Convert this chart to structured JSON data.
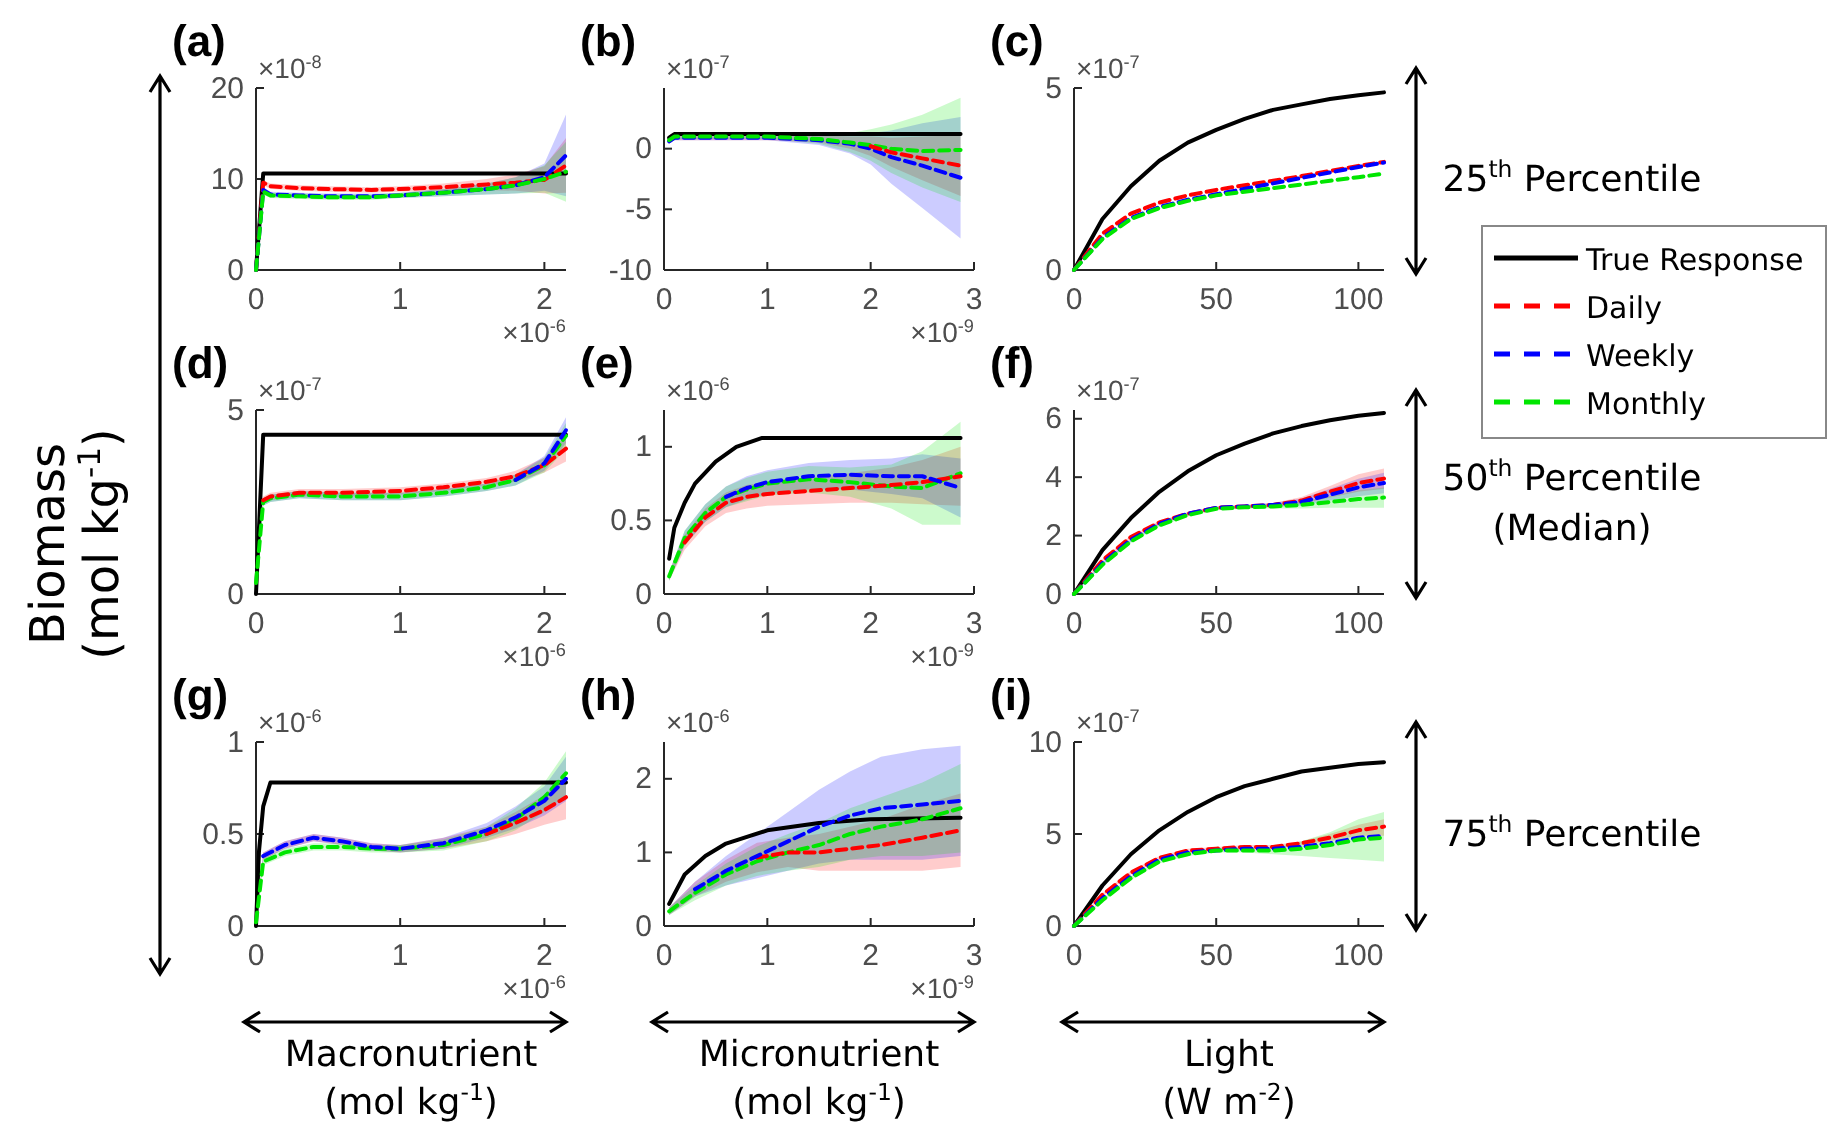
{
  "chart_data": [
    {
      "type": "line",
      "title": "(a)",
      "xlim": [
        0,
        2.15
      ],
      "xticks": [
        0,
        1,
        2
      ],
      "ylim": [
        0,
        20
      ],
      "yticks": [
        0,
        10,
        20
      ],
      "annotations": [
        "×10$^{-8}$",
        "×10$^{-6}$"
      ],
      "x": [
        0,
        0.05,
        0.1,
        0.3,
        0.5,
        0.8,
        1.0,
        1.3,
        1.6,
        1.8,
        2.0,
        2.15
      ],
      "series": [
        {
          "color": "#000000",
          "line_style": "solid",
          "x": [
            0,
            0.05,
            2.15
          ],
          "values": [
            0,
            10.6,
            10.6
          ]
        },
        {
          "color": "#ff0000",
          "line_style": "dashed",
          "values": [
            0,
            9.6,
            9.2,
            9.0,
            8.9,
            8.8,
            8.9,
            9.1,
            9.4,
            9.6,
            9.9,
            11.5
          ],
          "lower": [
            0,
            9.3,
            8.9,
            8.7,
            8.6,
            8.5,
            8.6,
            8.7,
            8.8,
            8.7,
            8.4,
            8.5
          ],
          "upper": [
            0,
            9.9,
            9.5,
            9.3,
            9.2,
            9.1,
            9.2,
            9.5,
            10.0,
            10.5,
            11.4,
            14.5
          ]
        },
        {
          "color": "#0000ff",
          "line_style": "dashed",
          "values": [
            0,
            8.8,
            8.3,
            8.2,
            8.1,
            8.1,
            8.2,
            8.5,
            8.9,
            9.3,
            10.2,
            12.6
          ],
          "lower": [
            0,
            8.5,
            8.0,
            7.9,
            7.8,
            7.8,
            7.9,
            8.1,
            8.3,
            8.4,
            8.7,
            8.1
          ],
          "upper": [
            0,
            9.1,
            8.6,
            8.5,
            8.4,
            8.4,
            8.5,
            8.9,
            9.5,
            10.2,
            11.7,
            17.1
          ]
        },
        {
          "color": "#00e600",
          "line_style": "dashed",
          "values": [
            0,
            8.6,
            8.2,
            8.1,
            8.0,
            8.0,
            8.2,
            8.5,
            8.9,
            9.3,
            10.0,
            10.8
          ],
          "lower": [
            0,
            8.3,
            7.9,
            7.8,
            7.7,
            7.7,
            7.9,
            8.1,
            8.3,
            8.4,
            8.5,
            7.5
          ],
          "upper": [
            0,
            8.9,
            8.5,
            8.4,
            8.3,
            8.3,
            8.5,
            8.9,
            9.5,
            10.2,
            11.5,
            14.1
          ]
        }
      ]
    },
    {
      "type": "line",
      "title": "(b)",
      "xlim": [
        0,
        3
      ],
      "xticks": [
        0,
        1,
        2,
        3
      ],
      "ylim": [
        -10,
        5
      ],
      "yticks": [
        -10,
        -5,
        0
      ],
      "annotations": [
        "×10$^{-7}$",
        "×10$^{-9}$"
      ],
      "x": [
        0.05,
        0.1,
        0.5,
        1,
        1.5,
        1.8,
        2.0,
        2.2,
        2.5,
        2.87
      ],
      "series": [
        {
          "color": "#000000",
          "line_style": "solid",
          "x": [
            0.05,
            0.1,
            2.87
          ],
          "values": [
            0.9,
            1.2,
            1.2
          ]
        },
        {
          "color": "#ff0000",
          "line_style": "dashed",
          "values": [
            null,
            null,
            null,
            null,
            null,
            null,
            0.2,
            -0.3,
            -0.8,
            -1.4
          ],
          "lower": [
            0.4,
            0.7,
            0.7,
            0.7,
            0.5,
            0,
            -0.6,
            -1.5,
            -2.6,
            -3.9
          ],
          "upper": [
            0.8,
            1.1,
            1.1,
            1.1,
            1.1,
            1.0,
            1.0,
            0.9,
            1.0,
            1.1
          ]
        },
        {
          "color": "#0000ff",
          "line_style": "dashed",
          "values": [
            0.6,
            0.9,
            0.9,
            0.9,
            0.7,
            0.4,
            0,
            -0.7,
            -1.4,
            -2.4
          ],
          "lower": [
            0.4,
            0.7,
            0.7,
            0.7,
            0.3,
            -0.4,
            -1.3,
            -2.9,
            -4.9,
            -7.4
          ],
          "upper": [
            0.8,
            1.1,
            1.1,
            1.1,
            1.1,
            1.2,
            1.3,
            1.5,
            2.1,
            2.6
          ]
        },
        {
          "color": "#00e600",
          "line_style": "dashed",
          "values": [
            0.7,
            1.0,
            1.0,
            1.0,
            0.8,
            0.5,
            0.3,
            0,
            -0.2,
            -0.1
          ],
          "lower": [
            0.5,
            0.8,
            0.8,
            0.8,
            0.4,
            -0.3,
            -1.0,
            -2.0,
            -3.2,
            -4.4
          ],
          "upper": [
            0.9,
            1.2,
            1.2,
            1.2,
            1.2,
            1.3,
            1.6,
            2.0,
            2.8,
            4.2
          ]
        }
      ]
    },
    {
      "type": "line",
      "title": "(c)",
      "xlim": [
        0,
        109
      ],
      "xticks": [
        0,
        50,
        100
      ],
      "ylim": [
        0,
        5
      ],
      "yticks": [
        0,
        5
      ],
      "legend": "right",
      "annotations": [
        "×10$^{-7}$",
        "25$^{th}$ Percentile"
      ],
      "x": [
        0,
        10,
        20,
        30,
        40,
        50,
        60,
        70,
        80,
        90,
        100,
        109
      ],
      "series": [
        {
          "name": "True Response",
          "color": "#000000",
          "line_style": "solid",
          "values": [
            0,
            1.4,
            2.3,
            3.0,
            3.5,
            3.85,
            4.15,
            4.4,
            4.55,
            4.7,
            4.8,
            4.88
          ]
        },
        {
          "name": "Daily",
          "color": "#ff0000",
          "line_style": "dashed",
          "values": [
            0,
            1.0,
            1.55,
            1.85,
            2.05,
            2.2,
            2.33,
            2.45,
            2.58,
            2.72,
            2.86,
            2.97
          ]
        },
        {
          "name": "Weekly",
          "color": "#0000ff",
          "line_style": "dashed",
          "values": [
            0,
            0.88,
            1.43,
            1.73,
            1.93,
            2.08,
            2.23,
            2.38,
            2.53,
            2.68,
            2.83,
            2.95
          ]
        },
        {
          "name": "Monthly",
          "color": "#00e600",
          "line_style": "dashed",
          "values": [
            0,
            0.85,
            1.4,
            1.7,
            1.9,
            2.05,
            2.15,
            2.25,
            2.35,
            2.45,
            2.55,
            2.65
          ]
        }
      ]
    },
    {
      "type": "line",
      "title": "(d)",
      "ylabel": "Biomass (mol kg$^{-1}$)",
      "xlim": [
        0,
        2.15
      ],
      "xticks": [
        0,
        1,
        2
      ],
      "ylim": [
        0,
        5
      ],
      "yticks": [
        0,
        5
      ],
      "annotations": [
        "×10$^{-7}$",
        "×10$^{-6}$"
      ],
      "x": [
        0,
        0.05,
        0.1,
        0.3,
        0.6,
        1.0,
        1.3,
        1.6,
        1.8,
        2.0,
        2.15
      ],
      "series": [
        {
          "color": "#000000",
          "line_style": "solid",
          "x": [
            0,
            0.05,
            2.15
          ],
          "values": [
            0,
            4.33,
            4.33
          ]
        },
        {
          "color": "#ff0000",
          "line_style": "dashed",
          "values": [
            null,
            2.55,
            2.65,
            2.75,
            2.75,
            2.8,
            2.9,
            3.05,
            3.2,
            3.5,
            3.95
          ],
          "lower": [
            0.2,
            2.45,
            2.55,
            2.65,
            2.65,
            2.7,
            2.8,
            2.95,
            3.05,
            3.3,
            3.6
          ],
          "upper": [
            0.4,
            2.65,
            2.75,
            2.85,
            2.85,
            2.9,
            3.0,
            3.15,
            3.35,
            3.7,
            4.3
          ]
        },
        {
          "color": "#0000ff",
          "line_style": "dashed",
          "values": [
            null,
            null,
            null,
            null,
            null,
            null,
            null,
            null,
            3.1,
            3.55,
            4.45
          ],
          "lower": [
            0.2,
            2.4,
            2.5,
            2.6,
            2.55,
            2.55,
            2.65,
            2.8,
            2.95,
            3.35,
            4.1
          ],
          "upper": [
            0.4,
            2.6,
            2.7,
            2.8,
            2.75,
            2.75,
            2.85,
            3.0,
            3.25,
            3.75,
            4.8
          ]
        },
        {
          "color": "#00e600",
          "line_style": "dashed",
          "values": [
            0.3,
            2.5,
            2.6,
            2.7,
            2.65,
            2.65,
            2.75,
            2.9,
            3.1,
            3.5,
            4.3
          ],
          "lower": [
            0.2,
            2.4,
            2.5,
            2.6,
            2.55,
            2.55,
            2.65,
            2.8,
            2.95,
            3.3,
            3.95
          ],
          "upper": [
            0.4,
            2.6,
            2.7,
            2.8,
            2.75,
            2.75,
            2.85,
            3.0,
            3.25,
            3.7,
            4.65
          ]
        }
      ]
    },
    {
      "type": "line",
      "title": "(e)",
      "xlim": [
        0,
        3
      ],
      "xticks": [
        0,
        1,
        2,
        3
      ],
      "ylim": [
        0,
        1.25
      ],
      "yticks": [
        0,
        0.5,
        1
      ],
      "annotations": [
        "×10$^{-6}$",
        "×10$^{-9}$"
      ],
      "x": [
        0.05,
        0.2,
        0.4,
        0.6,
        0.8,
        1.0,
        1.4,
        1.8,
        2.2,
        2.5,
        2.87
      ],
      "series": [
        {
          "color": "#000000",
          "line_style": "solid",
          "x": [
            0.05,
            0.1,
            0.2,
            0.3,
            0.5,
            0.7,
            0.95,
            2.87
          ],
          "values": [
            0.24,
            0.45,
            0.62,
            0.75,
            0.9,
            1.0,
            1.06,
            1.06
          ]
        },
        {
          "color": "#ff0000",
          "line_style": "dashed",
          "values": [
            null,
            0.35,
            0.52,
            0.62,
            0.66,
            0.68,
            0.7,
            0.72,
            0.74,
            0.76,
            0.8
          ],
          "lower": [
            0.09,
            0.3,
            0.46,
            0.55,
            0.58,
            0.6,
            0.61,
            0.62,
            0.62,
            0.61,
            0.6
          ],
          "upper": [
            0.15,
            0.4,
            0.58,
            0.69,
            0.74,
            0.76,
            0.79,
            0.82,
            0.86,
            0.91,
            1.0
          ]
        },
        {
          "color": "#0000ff",
          "line_style": "dashed",
          "values": [
            null,
            null,
            null,
            0.66,
            0.72,
            0.76,
            0.8,
            0.81,
            0.8,
            0.8,
            0.72
          ],
          "lower": [
            0.09,
            0.33,
            0.49,
            0.59,
            0.64,
            0.68,
            0.71,
            0.71,
            0.68,
            0.65,
            0.52
          ],
          "upper": [
            0.15,
            0.43,
            0.61,
            0.73,
            0.8,
            0.84,
            0.89,
            0.91,
            0.92,
            0.95,
            0.92
          ]
        },
        {
          "color": "#00e600",
          "line_style": "dashed",
          "values": [
            0.12,
            0.38,
            0.55,
            0.66,
            0.71,
            0.75,
            0.78,
            0.76,
            0.73,
            0.72,
            0.82
          ],
          "lower": [
            0.09,
            0.33,
            0.49,
            0.59,
            0.63,
            0.67,
            0.69,
            0.66,
            0.58,
            0.47,
            0.47
          ],
          "upper": [
            0.15,
            0.43,
            0.61,
            0.73,
            0.79,
            0.83,
            0.87,
            0.86,
            0.88,
            0.97,
            1.17
          ]
        }
      ]
    },
    {
      "type": "line",
      "title": "(f)",
      "xlim": [
        0,
        109
      ],
      "xticks": [
        0,
        50,
        100
      ],
      "ylim": [
        0,
        6.3
      ],
      "yticks": [
        0,
        2,
        4,
        6
      ],
      "annotations": [
        "×10$^{-7}$",
        "50$^{th}$ Percentile (Median)"
      ],
      "x": [
        0,
        10,
        20,
        30,
        40,
        50,
        60,
        70,
        80,
        90,
        100,
        109
      ],
      "series": [
        {
          "color": "#000000",
          "line_style": "solid",
          "values": [
            0,
            1.5,
            2.6,
            3.5,
            4.2,
            4.75,
            5.15,
            5.5,
            5.75,
            5.95,
            6.1,
            6.2
          ]
        },
        {
          "color": "#ff0000",
          "line_style": "dashed",
          "values": [
            0,
            1.15,
            1.95,
            2.45,
            2.75,
            2.95,
            3.0,
            3.05,
            3.2,
            3.5,
            3.8,
            3.95
          ],
          "lower": [
            0,
            1.1,
            1.9,
            2.4,
            2.7,
            2.9,
            2.95,
            2.98,
            3.08,
            3.3,
            3.5,
            3.6
          ],
          "upper": [
            0,
            1.2,
            2.0,
            2.5,
            2.8,
            3.0,
            3.05,
            3.12,
            3.32,
            3.7,
            4.1,
            4.3
          ]
        },
        {
          "color": "#0000ff",
          "line_style": "dashed",
          "values": [
            0,
            1.05,
            1.85,
            2.4,
            2.75,
            2.95,
            3.0,
            3.05,
            3.15,
            3.4,
            3.65,
            3.8
          ],
          "lower": [
            0,
            1.0,
            1.8,
            2.35,
            2.7,
            2.9,
            2.95,
            2.98,
            3.03,
            3.2,
            3.35,
            3.45
          ],
          "upper": [
            0,
            1.1,
            1.9,
            2.45,
            2.8,
            3.0,
            3.05,
            3.12,
            3.27,
            3.6,
            3.95,
            4.15
          ]
        },
        {
          "color": "#00e600",
          "line_style": "dashed",
          "values": [
            0,
            1.0,
            1.8,
            2.35,
            2.7,
            2.92,
            2.97,
            3.0,
            3.05,
            3.15,
            3.25,
            3.3
          ],
          "lower": [
            0,
            0.95,
            1.75,
            2.3,
            2.65,
            2.87,
            2.92,
            2.93,
            2.93,
            2.95,
            2.95,
            2.95
          ],
          "upper": [
            0,
            1.05,
            1.85,
            2.4,
            2.75,
            2.97,
            3.02,
            3.07,
            3.17,
            3.35,
            3.55,
            3.65
          ]
        }
      ]
    },
    {
      "type": "line",
      "title": "(g)",
      "xlabel": "Macronutrient (mol kg$^{-1}$)",
      "xlim": [
        0,
        2.15
      ],
      "xticks": [
        0,
        1,
        2
      ],
      "ylim": [
        0,
        1
      ],
      "yticks": [
        0,
        0.5,
        1
      ],
      "annotations": [
        "×10$^{-6}$",
        "×10$^{-6}$"
      ],
      "x": [
        0,
        0.05,
        0.2,
        0.4,
        0.6,
        0.8,
        1.0,
        1.3,
        1.6,
        1.8,
        2.0,
        2.15
      ],
      "series": [
        {
          "color": "#000000",
          "line_style": "solid",
          "x": [
            0,
            0.02,
            0.05,
            0.1,
            2.15
          ],
          "values": [
            0,
            0.4,
            0.65,
            0.78,
            0.78
          ]
        },
        {
          "color": "#ff0000",
          "line_style": "dashed",
          "values": [
            null,
            null,
            null,
            null,
            null,
            null,
            null,
            null,
            0.5,
            0.56,
            0.63,
            0.7
          ],
          "lower": [
            0.01,
            0.36,
            0.42,
            0.46,
            0.44,
            0.41,
            0.4,
            0.42,
            0.46,
            0.5,
            0.55,
            0.58
          ],
          "upper": [
            0.03,
            0.4,
            0.46,
            0.5,
            0.48,
            0.45,
            0.44,
            0.48,
            0.54,
            0.62,
            0.71,
            0.82
          ]
        },
        {
          "color": "#0000ff",
          "line_style": "dashed",
          "values": [
            null,
            0.38,
            0.44,
            0.48,
            0.46,
            0.43,
            0.42,
            0.45,
            0.52,
            0.59,
            0.68,
            0.8
          ],
          "lower": [
            0.01,
            0.36,
            0.42,
            0.46,
            0.44,
            0.41,
            0.4,
            0.42,
            0.48,
            0.53,
            0.6,
            0.68
          ],
          "upper": [
            0.03,
            0.4,
            0.46,
            0.5,
            0.48,
            0.45,
            0.44,
            0.48,
            0.56,
            0.65,
            0.76,
            0.92
          ]
        },
        {
          "color": "#00e600",
          "line_style": "dashed",
          "values": [
            0.02,
            0.35,
            0.4,
            0.43,
            0.43,
            0.42,
            0.42,
            0.44,
            0.5,
            0.58,
            0.7,
            0.83
          ],
          "lower": [
            0.01,
            0.33,
            0.38,
            0.41,
            0.41,
            0.4,
            0.4,
            0.41,
            0.46,
            0.52,
            0.62,
            0.71
          ],
          "upper": [
            0.03,
            0.37,
            0.42,
            0.45,
            0.45,
            0.44,
            0.44,
            0.47,
            0.54,
            0.64,
            0.78,
            0.95
          ]
        }
      ]
    },
    {
      "type": "line",
      "title": "(h)",
      "xlabel": "Micronutrient (mol kg$^{-1}$)",
      "xlim": [
        0,
        3
      ],
      "xticks": [
        0,
        1,
        2,
        3
      ],
      "ylim": [
        0,
        2.5
      ],
      "yticks": [
        0,
        1,
        2
      ],
      "annotations": [
        "×10$^{-6}$",
        "×10$^{-9}$"
      ],
      "x": [
        0.05,
        0.3,
        0.6,
        0.9,
        1.2,
        1.5,
        1.8,
        2.1,
        2.5,
        2.87
      ],
      "series": [
        {
          "color": "#000000",
          "line_style": "solid",
          "x": [
            0.05,
            0.2,
            0.4,
            0.6,
            1.0,
            1.5,
            2.0,
            2.87
          ],
          "values": [
            0.3,
            0.7,
            0.95,
            1.12,
            1.3,
            1.4,
            1.45,
            1.47
          ]
        },
        {
          "color": "#ff0000",
          "line_style": "dashed",
          "values": [
            null,
            null,
            null,
            0.93,
            1.0,
            1.0,
            1.05,
            1.1,
            1.2,
            1.3
          ],
          "lower": [
            0.15,
            0.4,
            0.6,
            0.73,
            0.8,
            0.75,
            0.75,
            0.75,
            0.75,
            0.8
          ],
          "upper": [
            0.25,
            0.6,
            0.9,
            1.13,
            1.2,
            1.25,
            1.35,
            1.45,
            1.65,
            1.8
          ]
        },
        {
          "color": "#0000ff",
          "line_style": "dashed",
          "values": [
            null,
            0.5,
            0.75,
            0.95,
            1.15,
            1.35,
            1.5,
            1.6,
            1.65,
            1.7
          ],
          "lower": [
            0.15,
            0.4,
            0.55,
            0.65,
            0.75,
            0.85,
            0.9,
            0.9,
            0.9,
            0.95
          ],
          "upper": [
            0.25,
            0.6,
            0.95,
            1.25,
            1.55,
            1.85,
            2.1,
            2.3,
            2.4,
            2.45
          ]
        },
        {
          "color": "#00e600",
          "line_style": "dashed",
          "values": [
            0.2,
            0.45,
            0.7,
            0.88,
            1.0,
            1.1,
            1.25,
            1.35,
            1.45,
            1.6
          ],
          "lower": [
            0.15,
            0.35,
            0.55,
            0.68,
            0.75,
            0.8,
            0.9,
            0.95,
            0.95,
            1.0
          ],
          "upper": [
            0.25,
            0.55,
            0.85,
            1.08,
            1.25,
            1.4,
            1.6,
            1.75,
            1.95,
            2.2
          ]
        }
      ]
    },
    {
      "type": "line",
      "title": "(i)",
      "xlabel": "Light (W m$^{-2}$)",
      "xlim": [
        0,
        109
      ],
      "xticks": [
        0,
        50,
        100
      ],
      "ylim": [
        0,
        10
      ],
      "yticks": [
        0,
        5,
        10
      ],
      "annotations": [
        "×10$^{-7}$",
        "75$^{th}$ Percentile"
      ],
      "x": [
        0,
        10,
        20,
        30,
        40,
        50,
        60,
        70,
        80,
        90,
        100,
        109
      ],
      "series": [
        {
          "color": "#000000",
          "line_style": "solid",
          "values": [
            0,
            2.2,
            3.9,
            5.2,
            6.2,
            7.0,
            7.6,
            8.0,
            8.4,
            8.6,
            8.8,
            8.9
          ]
        },
        {
          "color": "#ff0000",
          "line_style": "dashed",
          "values": [
            0,
            1.7,
            2.9,
            3.7,
            4.1,
            4.2,
            4.3,
            4.3,
            4.5,
            4.8,
            5.2,
            5.4
          ],
          "lower": [
            0,
            1.6,
            2.8,
            3.6,
            4.0,
            4.1,
            4.2,
            4.2,
            4.4,
            4.6,
            4.9,
            4.9
          ],
          "upper": [
            0,
            1.8,
            3.0,
            3.8,
            4.2,
            4.3,
            4.4,
            4.4,
            4.6,
            5.0,
            5.5,
            5.8
          ]
        },
        {
          "color": "#0000ff",
          "line_style": "dashed",
          "values": [
            0,
            1.5,
            2.7,
            3.6,
            4.0,
            4.1,
            4.2,
            4.2,
            4.3,
            4.5,
            4.8,
            4.9
          ]
        },
        {
          "color": "#00e600",
          "line_style": "dashed",
          "values": [
            0,
            1.4,
            2.6,
            3.5,
            3.9,
            4.1,
            4.1,
            4.1,
            4.2,
            4.4,
            4.7,
            4.8
          ],
          "lower": [
            0,
            1.3,
            2.5,
            3.4,
            3.8,
            4.0,
            4.0,
            3.9,
            3.8,
            3.7,
            3.6,
            3.5
          ],
          "upper": [
            0,
            1.5,
            2.7,
            3.6,
            4.0,
            4.2,
            4.2,
            4.3,
            4.6,
            5.1,
            5.8,
            6.2
          ]
        }
      ]
    }
  ]
}
